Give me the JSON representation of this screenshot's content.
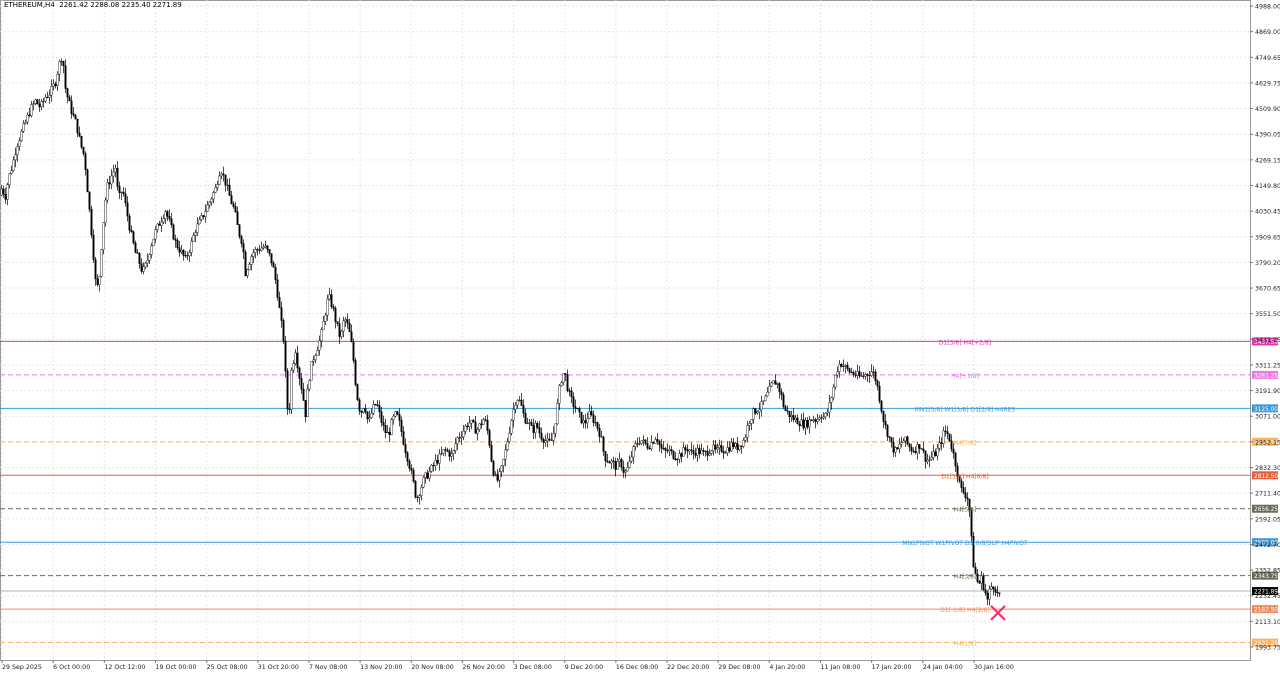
{
  "header": {
    "symbol": "ETHEREUM,H4",
    "ohlc": "2261.42 2288.08 2235.40 2271.89"
  },
  "colors": {
    "grid": "#e6e6e6",
    "candle": "#000000",
    "sell_marker": "#ff2a6d"
  },
  "chart_data": {
    "type": "candlestick",
    "y_ticks": [
      "4988.00",
      "4869.00",
      "4749.65",
      "4629.75",
      "4509.90",
      "4390.05",
      "4269.15",
      "4149.80",
      "4030.45",
      "3909.65",
      "3790.20",
      "3670.65",
      "3551.50",
      "3431.25",
      "3311.25",
      "3191.90",
      "3071.00",
      "2952.15",
      "2832.30",
      "2711.40",
      "2592.05",
      "2472.70",
      "2352.85",
      "2232.45",
      "2113.10",
      "1993.75"
    ],
    "x_ticks": [
      "29 Sep 2025",
      "6 Oct 00:00",
      "12 Oct 12:00",
      "19 Oct 00:00",
      "25 Oct 08:00",
      "31 Oct 20:00",
      "7 Nov 08:00",
      "13 Nov 20:00",
      "20 Nov 08:00",
      "26 Nov 20:00",
      "3 Dec 08:00",
      "9 Dec 20:00",
      "16 Dec 08:00",
      "22 Dec 20:00",
      "29 Dec 08:00",
      "4 Jan 20:00",
      "11 Jan 08:00",
      "17 Jan 20:00",
      "24 Jan 04:00",
      "30 Jan 16:00"
    ],
    "ylim": [
      1950,
      5013
    ],
    "price_path": [
      [
        0,
        4120
      ],
      [
        2,
        4180
      ],
      [
        4,
        4090
      ],
      [
        8,
        4200
      ],
      [
        12,
        4260
      ],
      [
        16,
        4350
      ],
      [
        20,
        4400
      ],
      [
        25,
        4460
      ],
      [
        30,
        4520
      ],
      [
        35,
        4560
      ],
      [
        40,
        4530
      ],
      [
        45,
        4580
      ],
      [
        50,
        4600
      ],
      [
        55,
        4650
      ],
      [
        58,
        4720
      ],
      [
        62,
        4780
      ],
      [
        65,
        4620
      ],
      [
        68,
        4560
      ],
      [
        72,
        4500
      ],
      [
        76,
        4450
      ],
      [
        80,
        4360
      ],
      [
        84,
        4300
      ],
      [
        88,
        4100
      ],
      [
        92,
        3900
      ],
      [
        95,
        3720
      ],
      [
        98,
        3680
      ],
      [
        102,
        3950
      ],
      [
        106,
        4150
      ],
      [
        110,
        4200
      ],
      [
        115,
        4250
      ],
      [
        118,
        4100
      ],
      [
        122,
        4150
      ],
      [
        126,
        4050
      ],
      [
        130,
        3950
      ],
      [
        135,
        3850
      ],
      [
        138,
        3820
      ],
      [
        142,
        3760
      ],
      [
        146,
        3800
      ],
      [
        150,
        3880
      ],
      [
        155,
        3950
      ],
      [
        160,
        4000
      ],
      [
        165,
        4050
      ],
      [
        170,
        3980
      ],
      [
        175,
        3900
      ],
      [
        180,
        3860
      ],
      [
        185,
        3820
      ],
      [
        190,
        3880
      ],
      [
        195,
        3960
      ],
      [
        200,
        4000
      ],
      [
        205,
        4050
      ],
      [
        210,
        4100
      ],
      [
        215,
        4150
      ],
      [
        220,
        4250
      ],
      [
        225,
        4180
      ],
      [
        230,
        4100
      ],
      [
        234,
        4050
      ],
      [
        238,
        3950
      ],
      [
        242,
        3900
      ],
      [
        245,
        3760
      ],
      [
        248,
        3800
      ],
      [
        252,
        3850
      ],
      [
        258,
        3870
      ],
      [
        264,
        3880
      ],
      [
        268,
        3850
      ],
      [
        272,
        3800
      ],
      [
        276,
        3700
      ],
      [
        280,
        3550
      ],
      [
        283,
        3450
      ],
      [
        286,
        3200
      ],
      [
        288,
        3050
      ],
      [
        291,
        3300
      ],
      [
        295,
        3400
      ],
      [
        298,
        3300
      ],
      [
        302,
        3200
      ],
      [
        305,
        3100
      ],
      [
        308,
        3250
      ],
      [
        312,
        3350
      ],
      [
        316,
        3400
      ],
      [
        320,
        3450
      ],
      [
        324,
        3550
      ],
      [
        328,
        3650
      ],
      [
        332,
        3600
      ],
      [
        336,
        3520
      ],
      [
        340,
        3450
      ],
      [
        344,
        3550
      ],
      [
        348,
        3500
      ],
      [
        352,
        3400
      ],
      [
        356,
        3200
      ],
      [
        360,
        3100
      ],
      [
        364,
        3150
      ],
      [
        368,
        3050
      ],
      [
        372,
        3120
      ],
      [
        376,
        3150
      ],
      [
        380,
        3080
      ],
      [
        384,
        3020
      ],
      [
        388,
        3000
      ],
      [
        392,
        3070
      ],
      [
        396,
        3100
      ],
      [
        400,
        3040
      ],
      [
        404,
        2950
      ],
      [
        408,
        2880
      ],
      [
        412,
        2800
      ],
      [
        416,
        2700
      ],
      [
        420,
        2750
      ],
      [
        424,
        2800
      ],
      [
        428,
        2820
      ],
      [
        432,
        2850
      ],
      [
        436,
        2880
      ],
      [
        440,
        2900
      ],
      [
        444,
        2930
      ],
      [
        448,
        2920
      ],
      [
        452,
        2900
      ],
      [
        456,
        2980
      ],
      [
        460,
        3000
      ],
      [
        464,
        3030
      ],
      [
        468,
        3060
      ],
      [
        472,
        3050
      ],
      [
        476,
        3020
      ],
      [
        480,
        3050
      ],
      [
        484,
        3080
      ],
      [
        488,
        3000
      ],
      [
        492,
        2850
      ],
      [
        496,
        2780
      ],
      [
        500,
        2820
      ],
      [
        504,
        2900
      ],
      [
        508,
        3000
      ],
      [
        512,
        3100
      ],
      [
        516,
        3180
      ],
      [
        520,
        3150
      ],
      [
        524,
        3080
      ],
      [
        528,
        3060
      ],
      [
        532,
        3020
      ],
      [
        536,
        3050
      ],
      [
        540,
        3000
      ],
      [
        544,
        2980
      ],
      [
        548,
        2960
      ],
      [
        552,
        2980
      ],
      [
        556,
        3100
      ],
      [
        560,
        3250
      ],
      [
        564,
        3300
      ],
      [
        568,
        3200
      ],
      [
        572,
        3150
      ],
      [
        576,
        3120
      ],
      [
        580,
        3080
      ],
      [
        584,
        3050
      ],
      [
        588,
        3100
      ],
      [
        592,
        3080
      ],
      [
        596,
        3050
      ],
      [
        600,
        3000
      ],
      [
        604,
        2900
      ],
      [
        608,
        2880
      ],
      [
        612,
        2870
      ],
      [
        616,
        2850
      ],
      [
        620,
        2880
      ],
      [
        624,
        2820
      ],
      [
        628,
        2850
      ],
      [
        632,
        2920
      ],
      [
        636,
        2960
      ],
      [
        640,
        2980
      ],
      [
        644,
        2960
      ],
      [
        648,
        2950
      ],
      [
        652,
        2970
      ],
      [
        656,
        3000
      ],
      [
        660,
        2940
      ],
      [
        664,
        2920
      ],
      [
        668,
        2930
      ],
      [
        672,
        2910
      ],
      [
        676,
        2900
      ],
      [
        680,
        2910
      ],
      [
        684,
        2930
      ],
      [
        688,
        2940
      ],
      [
        692,
        2910
      ],
      [
        696,
        2930
      ],
      [
        700,
        2920
      ],
      [
        704,
        2910
      ],
      [
        708,
        2930
      ],
      [
        712,
        2940
      ],
      [
        716,
        2920
      ],
      [
        720,
        2940
      ],
      [
        724,
        2930
      ],
      [
        728,
        2940
      ],
      [
        732,
        2960
      ],
      [
        736,
        2940
      ],
      [
        740,
        2960
      ],
      [
        744,
        2980
      ],
      [
        748,
        3060
      ],
      [
        752,
        3100
      ],
      [
        756,
        3120
      ],
      [
        760,
        3130
      ],
      [
        764,
        3160
      ],
      [
        768,
        3200
      ],
      [
        772,
        3240
      ],
      [
        776,
        3250
      ],
      [
        780,
        3200
      ],
      [
        784,
        3120
      ],
      [
        788,
        3100
      ],
      [
        792,
        3080
      ],
      [
        796,
        3070
      ],
      [
        800,
        3060
      ],
      [
        804,
        3050
      ],
      [
        808,
        3060
      ],
      [
        812,
        3080
      ],
      [
        816,
        3070
      ],
      [
        820,
        3100
      ],
      [
        824,
        3080
      ],
      [
        828,
        3120
      ],
      [
        832,
        3200
      ],
      [
        836,
        3300
      ],
      [
        840,
        3340
      ],
      [
        844,
        3320
      ],
      [
        848,
        3300
      ],
      [
        852,
        3290
      ],
      [
        856,
        3280
      ],
      [
        860,
        3270
      ],
      [
        864,
        3280
      ],
      [
        868,
        3290
      ],
      [
        872,
        3300
      ],
      [
        876,
        3250
      ],
      [
        880,
        3150
      ],
      [
        884,
        3050
      ],
      [
        888,
        3000
      ],
      [
        892,
        2940
      ],
      [
        896,
        2920
      ],
      [
        900,
        2960
      ],
      [
        904,
        2980
      ],
      [
        908,
        2950
      ],
      [
        912,
        2930
      ],
      [
        916,
        2940
      ],
      [
        920,
        2960
      ],
      [
        924,
        2900
      ],
      [
        928,
        2880
      ],
      [
        932,
        2900
      ],
      [
        936,
        2920
      ],
      [
        940,
        2960
      ],
      [
        944,
        3020
      ],
      [
        948,
        3000
      ],
      [
        952,
        2930
      ],
      [
        956,
        2850
      ],
      [
        960,
        2750
      ],
      [
        964,
        2730
      ],
      [
        968,
        2700
      ],
      [
        970,
        2600
      ],
      [
        972,
        2420
      ],
      [
        975,
        2350
      ],
      [
        978,
        2300
      ],
      [
        981,
        2330
      ],
      [
        984,
        2280
      ],
      [
        987,
        2230
      ],
      [
        990,
        2290
      ],
      [
        994,
        2300
      ],
      [
        998,
        2240
      ],
      [
        1000,
        2272
      ]
    ]
  },
  "levels": [
    {
      "label": "D1[3/8] H4[+2/8]",
      "tag": "3437.50",
      "value": 3437.5,
      "color": "#d63aa5",
      "dash": "solid",
      "label_x": 965
    },
    {
      "label": "H4[+1/8]",
      "tag": "3281.25",
      "value": 3281.25,
      "color": "#e87ce0",
      "dash": "dashed",
      "label_x": 965
    },
    {
      "label": "MN1[5/8] W1[5/8] D1[2/8] H4RES",
      "tag": "3125.00",
      "value": 3125.0,
      "color": "#3a9ad9",
      "dash": "solid",
      "label_x": 965
    },
    {
      "label": "H4[7/8]",
      "tag": "2968.75",
      "value": 2968.75,
      "color": "#ffb05a",
      "dash": "dashed",
      "label_x": 965
    },
    {
      "label": "D1[1/8] H4[6/8]",
      "tag": "2812.50",
      "value": 2812.5,
      "color": "#e8603a",
      "dash": "solid",
      "label_x": 965
    },
    {
      "label": "H4[5/8]",
      "tag": "2656.25",
      "value": 2656.25,
      "color": "#6b6b55",
      "dash": "dashed",
      "label_x": 965
    },
    {
      "label": "MN1PIVOT W1PIVOT D1[0/8]SUP H4PIVOT",
      "tag": "2500.00",
      "value": 2500.0,
      "color": "#3a9ad9",
      "dash": "solid",
      "label_x": 965
    },
    {
      "label": "H4[3/8]",
      "tag": "2343.75",
      "value": 2343.75,
      "color": "#6b6b55",
      "dash": "dashed",
      "label_x": 965
    },
    {
      "label": "",
      "tag": "2271.89",
      "value": 2271.89,
      "color": "#b0b0b0",
      "dash": "solid",
      "label_x": 965,
      "tag_bg": "#000000"
    },
    {
      "label": "D1[-1/8] H4[2/8]",
      "tag": "2187.50",
      "value": 2187.5,
      "color": "#f08a60",
      "dash": "solid",
      "label_x": 965
    },
    {
      "label": "H4[1/8]",
      "tag": "2031.25",
      "value": 2031.25,
      "color": "#ffb05a",
      "dash": "dashed",
      "label_x": 965
    }
  ]
}
